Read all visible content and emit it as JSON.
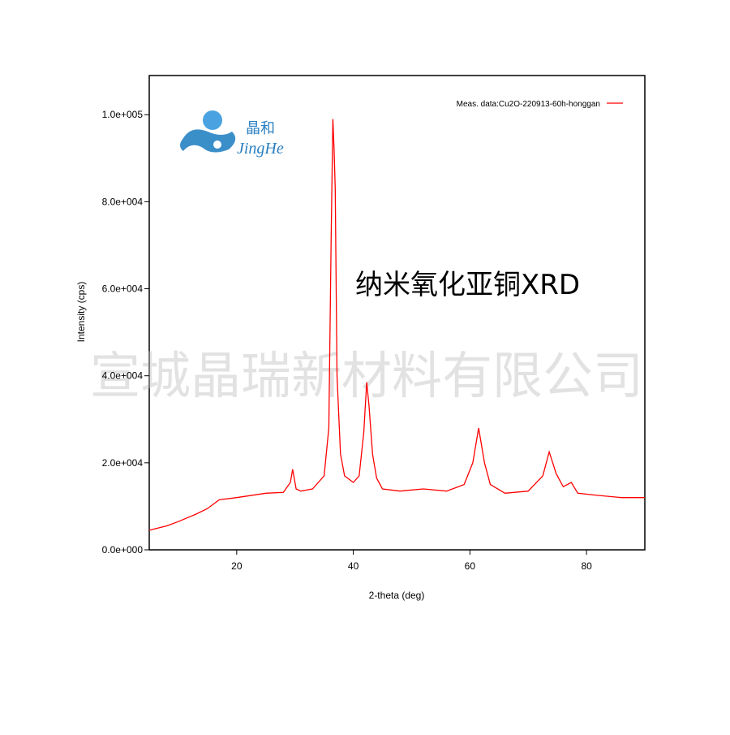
{
  "chart_data": {
    "type": "line",
    "xlabel": "2-theta (deg)",
    "ylabel": "Intensity (cps)",
    "annotation": "纳米氧化亚铜XRD",
    "watermark": "宣城晶瑞新材料有限公司",
    "logo": {
      "chinese": "晶和",
      "latin": "JingHe"
    },
    "x": [
      5,
      8,
      10,
      13,
      15,
      17,
      20,
      25,
      28,
      29.2,
      29.6,
      30.2,
      31,
      33,
      35,
      35.8,
      36.2,
      36.5,
      36.7,
      36.9,
      37.2,
      37.8,
      38.5,
      40,
      41,
      41.8,
      42.3,
      42.7,
      43.3,
      44,
      45,
      48,
      52,
      56,
      59,
      60.5,
      61.5,
      62.5,
      63.5,
      66,
      70,
      72.5,
      73.6,
      74.8,
      76,
      77.4,
      78.5,
      82,
      86,
      90
    ],
    "series": [
      {
        "name": "Meas. data:Cu2O-220913-60h-honggan",
        "color": "#ff0000",
        "values": [
          4500,
          5500,
          6500,
          8200,
          9500,
          11500,
          12000,
          13000,
          13200,
          15500,
          18500,
          14000,
          13500,
          14000,
          17000,
          28000,
          72000,
          99000,
          92000,
          83000,
          40000,
          22000,
          17000,
          15500,
          17000,
          27000,
          38500,
          33000,
          22000,
          16500,
          14000,
          13500,
          14000,
          13500,
          15000,
          20000,
          28000,
          20000,
          15000,
          13000,
          13500,
          17000,
          22500,
          17500,
          14500,
          15500,
          13000,
          12500,
          12000,
          12000
        ]
      }
    ],
    "xlim": [
      5,
      90
    ],
    "ylim": [
      0,
      109000
    ],
    "xticks": [
      20,
      40,
      60,
      80
    ],
    "yticks": [
      {
        "value": 0,
        "label": "0.0e+000"
      },
      {
        "value": 20000,
        "label": "2.0e+004"
      },
      {
        "value": 40000,
        "label": "4.0e+004"
      },
      {
        "value": 60000,
        "label": "6.0e+004"
      },
      {
        "value": 80000,
        "label": "8.0e+004"
      },
      {
        "value": 100000,
        "label": "1.0e+005"
      }
    ],
    "legend": "upper right"
  }
}
